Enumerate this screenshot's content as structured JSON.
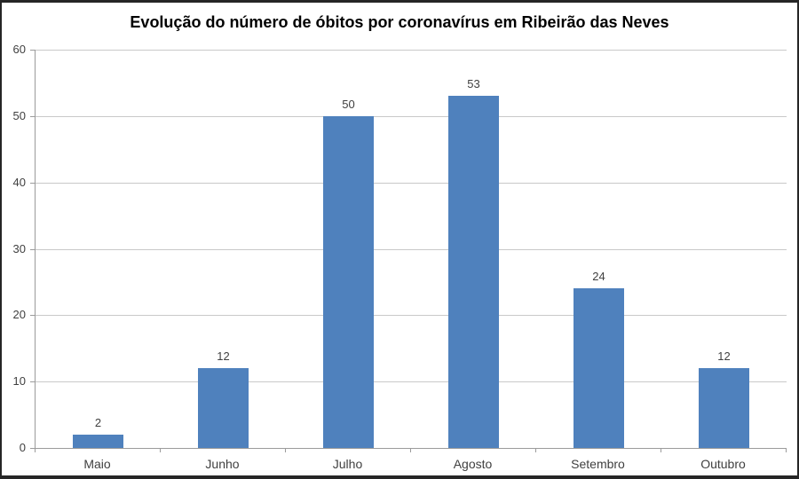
{
  "chart_data": {
    "type": "bar",
    "title": "Evolução do número de óbitos por coronavírus em Ribeirão das Neves",
    "categories": [
      "Maio",
      "Junho",
      "Julho",
      "Agosto",
      "Setembro",
      "Outubro"
    ],
    "values": [
      2,
      12,
      50,
      53,
      24,
      12
    ],
    "data_labels": [
      "2",
      "12",
      "50",
      "53",
      "24",
      "12"
    ],
    "xlabel": "",
    "ylabel": "",
    "ylim": [
      0,
      60
    ],
    "yticks": [
      0,
      10,
      20,
      30,
      40,
      50,
      60
    ],
    "grid": true,
    "legend_position": "none",
    "colors": {
      "bar_fill": "#4F81BD",
      "gridline": "#C9C9C9",
      "axis_line": "#9B9B9B",
      "tick_label": "#3F3F3F",
      "data_label": "#3F3F3F",
      "title": "#000000",
      "frame_border": "#262626",
      "background": "#FFFFFF"
    }
  }
}
